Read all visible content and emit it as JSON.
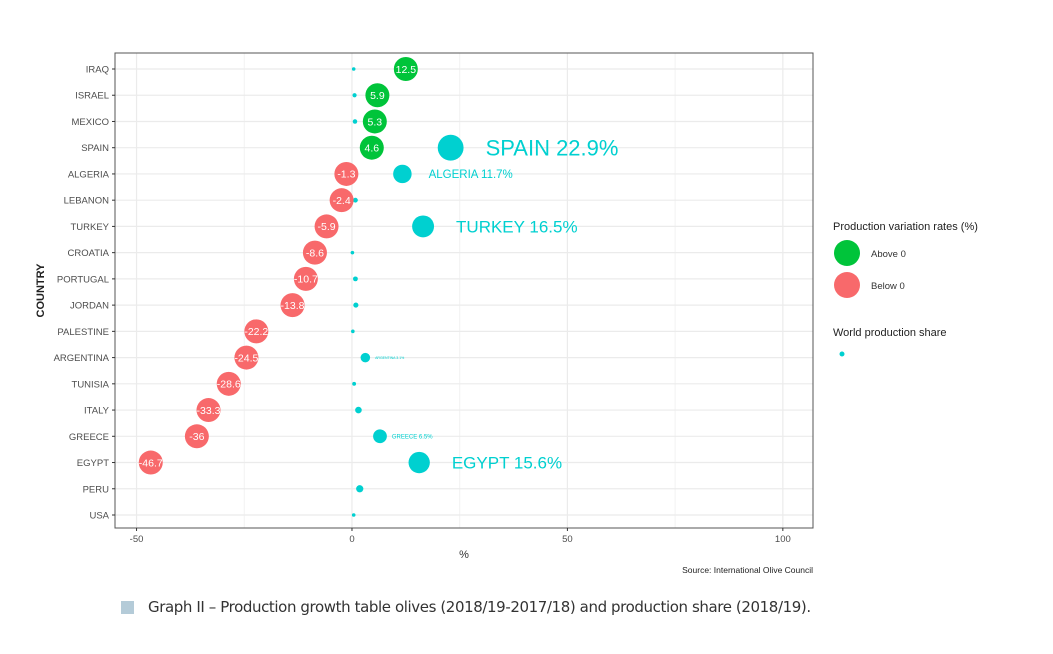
{
  "chart_data": {
    "type": "scatter",
    "title": "",
    "xlabel": "%",
    "ylabel": "COUNTRY",
    "xlim": [
      -55,
      107
    ],
    "xticks": [
      -50,
      0,
      50,
      100
    ],
    "x_tick_labels": [
      "-50",
      "0",
      "50",
      "100"
    ],
    "grid": true,
    "categories": [
      "IRAQ",
      "ISRAEL",
      "MEXICO",
      "SPAIN",
      "ALGERIA",
      "LEBANON",
      "TURKEY",
      "CROATIA",
      "PORTUGAL",
      "JORDAN",
      "PALESTINE",
      "ARGENTINA",
      "TUNISIA",
      "ITALY",
      "GREECE",
      "EGYPT",
      "PERU",
      "USA"
    ],
    "series": [
      {
        "name": "Production variation rates (%)",
        "values": [
          12.5,
          5.9,
          5.3,
          4.6,
          -1.3,
          -2.4,
          -5.9,
          -8.6,
          -10.7,
          -13.8,
          -22.2,
          -24.5,
          -28.6,
          -33.3,
          -36,
          -46.7,
          null,
          null
        ],
        "labels": [
          "12.5",
          "5.9",
          "5.3",
          "4.6",
          "-1.3",
          "-2.4",
          "-5.9",
          "-8.6",
          "-10.7",
          "-13.8",
          "-22.2",
          "-24.5",
          "-28.6",
          "-33.3",
          "-36",
          "-46.7",
          "",
          ""
        ]
      },
      {
        "name": "World production share",
        "values": [
          0.4,
          0.6,
          0.7,
          22.9,
          11.7,
          0.8,
          16.5,
          0.1,
          0.8,
          0.9,
          0.2,
          3.1,
          0.5,
          1.5,
          6.5,
          15.6,
          1.8,
          0.4
        ],
        "labels": [
          "",
          "",
          "",
          "SPAIN 22.9%",
          "ALGERIA 11.7%",
          "",
          "TURKEY 16.5%",
          "",
          "",
          "",
          "",
          "ARGENTINA 3.1%",
          "",
          "",
          "GREECE 6.5%",
          "EGYPT 15.6%",
          "",
          ""
        ]
      }
    ],
    "legend": {
      "placement": "right",
      "variation_title": "Production variation rates (%)",
      "above_label": "Above 0",
      "below_label": "Below 0",
      "share_title": "World production share"
    },
    "colors": {
      "above": "#00c43a",
      "below": "#f8696b",
      "share": "#00d0d0"
    },
    "source": "Source: International Olive Council"
  },
  "caption": "Graph II – Production growth table olives (2018/19-2017/18) and production share (2018/19)."
}
